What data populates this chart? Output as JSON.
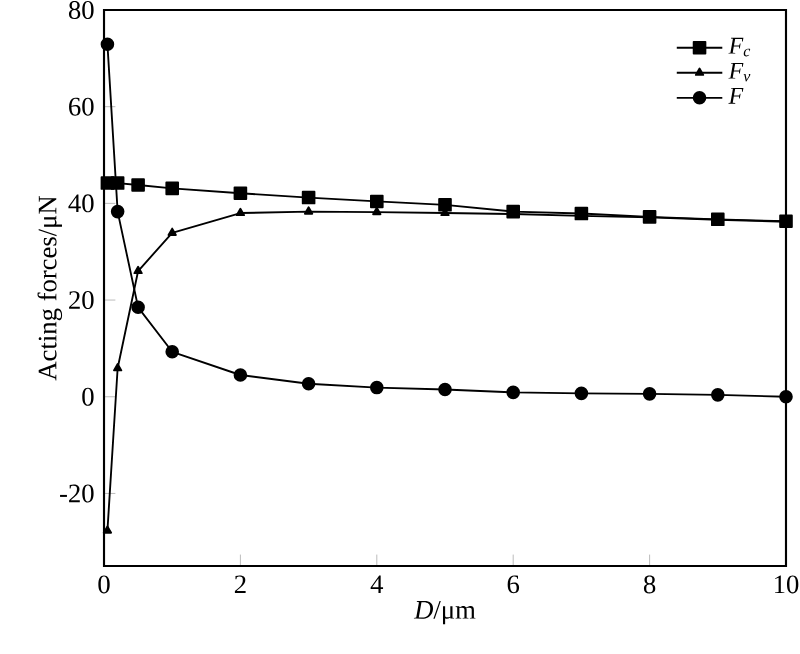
{
  "chart_data": {
    "type": "line",
    "xlabel": "*D*/μm",
    "ylabel": "Acting forces/μN",
    "xlim": [
      0,
      10
    ],
    "ylim": [
      -35,
      80
    ],
    "xticks": [
      0,
      2,
      4,
      6,
      8,
      10
    ],
    "yticks": [
      -20,
      0,
      20,
      40,
      60,
      80
    ],
    "legend": "top right",
    "grid": false,
    "line_style": "solid",
    "x": [
      0.05,
      0.2,
      0.5,
      1,
      2,
      3,
      4,
      5,
      6,
      7,
      8,
      9,
      10
    ],
    "series": [
      {
        "name": "*F*$_{c}$",
        "color": "#000000",
        "marker": "square",
        "values": [
          44.2,
          44.2,
          43.8,
          43.1,
          42.1,
          41.2,
          40.4,
          39.7,
          38.3,
          37.9,
          37.2,
          36.7,
          36.3
        ]
      },
      {
        "name": "*F*$_{v}$",
        "color": "#000000",
        "marker": "triangle",
        "values": [
          -27.7,
          5.9,
          26,
          33.9,
          38,
          38.3,
          38.2,
          38,
          37.8,
          37.4,
          37.1,
          36.6,
          36.2
        ]
      },
      {
        "name": "F",
        "color": "#000000",
        "marker": "circle",
        "values": [
          72.9,
          38.3,
          18.5,
          9.3,
          4.5,
          2.7,
          1.9,
          1.5,
          0.9,
          0.7,
          0.6,
          0.4,
          0
        ]
      }
    ]
  }
}
